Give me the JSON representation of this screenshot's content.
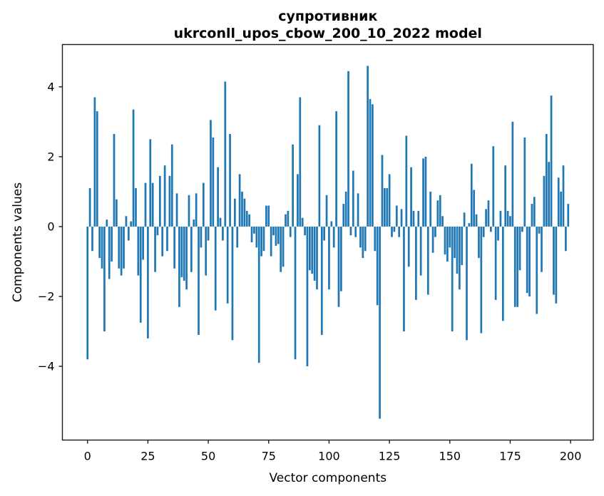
{
  "figure": {
    "title_line1": "супротивник",
    "title_line2": "ukrconll_upos_cbow_200_10_2022 model"
  },
  "chart_data": {
    "type": "bar",
    "title": "супротивник\nukrconll_upos_cbow_200_10_2022 model",
    "title_line1": "супротивник",
    "title_line2": "ukrconll_upos_cbow_200_10_2022 model",
    "xlabel": "Vector components",
    "ylabel": "Components values",
    "x_start": 0,
    "x_end": 199,
    "xticks": [
      0,
      25,
      50,
      75,
      100,
      125,
      150,
      175,
      200
    ],
    "yticks": [
      -4,
      -2,
      0,
      2,
      4
    ],
    "xlim": [
      -10.4,
      209.4
    ],
    "ylim": [
      -6.11,
      5.21
    ],
    "grid": false,
    "legend": null,
    "bar_color": "#1f77b4",
    "bar_width_units": 0.8,
    "values": [
      -3.8,
      1.1,
      -0.7,
      3.7,
      3.3,
      -0.9,
      -1.2,
      -3.0,
      0.2,
      -1.5,
      -1.0,
      2.65,
      0.78,
      -1.2,
      -1.4,
      -1.2,
      0.3,
      -0.4,
      0.15,
      3.35,
      1.1,
      -1.4,
      -2.75,
      -0.95,
      1.25,
      -3.2,
      2.5,
      1.25,
      -1.3,
      -0.25,
      1.45,
      -0.85,
      1.75,
      -0.7,
      1.45,
      2.35,
      -1.2,
      0.95,
      -2.3,
      -1.45,
      -1.55,
      -1.8,
      0.9,
      -1.3,
      0.2,
      0.95,
      -3.1,
      -0.6,
      1.25,
      -1.4,
      -0.4,
      3.05,
      2.55,
      -2.4,
      1.7,
      0.25,
      -0.4,
      4.15,
      -2.2,
      2.65,
      -3.25,
      0.8,
      -0.6,
      1.5,
      1.0,
      0.8,
      0.45,
      0.35,
      -0.45,
      -0.2,
      -0.6,
      -3.9,
      -0.85,
      -0.7,
      0.6,
      0.6,
      -0.85,
      -0.25,
      -0.55,
      -0.5,
      -1.3,
      -1.15,
      0.35,
      0.45,
      -0.3,
      2.35,
      -3.8,
      1.5,
      3.7,
      0.25,
      -0.25,
      -4.0,
      -1.25,
      -1.35,
      -1.55,
      -1.8,
      2.9,
      -3.1,
      -0.4,
      0.9,
      -1.8,
      0.15,
      -0.6,
      3.3,
      -2.3,
      -1.85,
      0.65,
      1.0,
      4.45,
      -0.25,
      1.6,
      -0.3,
      0.95,
      -0.6,
      -0.9,
      -0.7,
      4.6,
      3.65,
      3.5,
      -0.7,
      -2.25,
      -5.5,
      2.05,
      1.1,
      1.1,
      1.5,
      -0.3,
      -0.15,
      0.6,
      -0.3,
      0.5,
      -3.0,
      2.6,
      -1.15,
      1.7,
      0.45,
      -2.1,
      0.45,
      -1.4,
      1.95,
      2.0,
      -1.95,
      1.0,
      -0.75,
      -0.3,
      0.75,
      0.9,
      0.3,
      -0.8,
      -1.0,
      -0.6,
      -3.0,
      -0.9,
      -1.35,
      -1.8,
      -1.1,
      0.4,
      -3.25,
      0.1,
      1.8,
      1.05,
      0.35,
      -0.9,
      -3.05,
      -0.3,
      0.5,
      0.75,
      -0.15,
      2.3,
      -2.1,
      -0.4,
      0.45,
      -2.7,
      1.75,
      0.45,
      0.3,
      3.0,
      -2.3,
      -2.3,
      -1.25,
      -0.15,
      2.55,
      -1.9,
      -2.0,
      0.65,
      0.85,
      -2.5,
      -0.2,
      -1.3,
      1.45,
      2.65,
      1.85,
      3.75,
      -1.95,
      -2.2,
      1.4,
      1.0,
      1.75,
      -0.7,
      0.65
    ]
  }
}
